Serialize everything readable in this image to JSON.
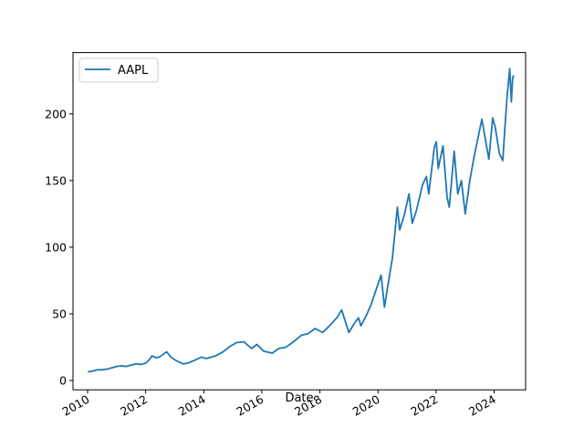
{
  "chart_data": {
    "type": "line",
    "title": "",
    "xlabel": "Date",
    "ylabel": "",
    "x_scale": "date",
    "xlim": [
      "2009-07-01",
      "2025-01-31"
    ],
    "ylim": [
      -7,
      246
    ],
    "x_ticks": [
      {
        "date": "2010-01-01",
        "label": "2010"
      },
      {
        "date": "2012-01-01",
        "label": "2012"
      },
      {
        "date": "2014-01-01",
        "label": "2014"
      },
      {
        "date": "2016-01-01",
        "label": "2016"
      },
      {
        "date": "2018-01-01",
        "label": "2018"
      },
      {
        "date": "2020-01-01",
        "label": "2020"
      },
      {
        "date": "2022-01-01",
        "label": "2022"
      },
      {
        "date": "2024-01-01",
        "label": "2024"
      }
    ],
    "y_ticks": [
      0,
      50,
      100,
      150,
      200
    ],
    "grid": false,
    "legend": {
      "position": "top-left"
    },
    "series": [
      {
        "name": "AAPL",
        "color": "#1f77b4",
        "points": [
          [
            "2010-01-04",
            6.5
          ],
          [
            "2010-03-01",
            7.0
          ],
          [
            "2010-05-01",
            8.0
          ],
          [
            "2010-07-01",
            8.0
          ],
          [
            "2010-09-01",
            8.5
          ],
          [
            "2010-11-01",
            9.5
          ],
          [
            "2011-01-01",
            10.5
          ],
          [
            "2011-03-01",
            11.0
          ],
          [
            "2011-05-01",
            10.5
          ],
          [
            "2011-07-01",
            11.5
          ],
          [
            "2011-09-01",
            12.5
          ],
          [
            "2011-11-01",
            12.0
          ],
          [
            "2012-01-01",
            13.0
          ],
          [
            "2012-02-15",
            15.5
          ],
          [
            "2012-03-20",
            18.5
          ],
          [
            "2012-05-15",
            17.0
          ],
          [
            "2012-07-01",
            18.0
          ],
          [
            "2012-09-20",
            21.5
          ],
          [
            "2012-11-15",
            17.5
          ],
          [
            "2013-01-15",
            15.0
          ],
          [
            "2013-04-15",
            12.5
          ],
          [
            "2013-06-15",
            13.0
          ],
          [
            "2013-09-01",
            15.0
          ],
          [
            "2013-12-01",
            17.5
          ],
          [
            "2014-02-01",
            16.5
          ],
          [
            "2014-06-01",
            18.5
          ],
          [
            "2014-09-01",
            21.5
          ],
          [
            "2014-11-25",
            25.5
          ],
          [
            "2015-02-20",
            28.5
          ],
          [
            "2015-05-20",
            29.0
          ],
          [
            "2015-08-25",
            24.0
          ],
          [
            "2015-11-01",
            27.0
          ],
          [
            "2016-01-25",
            22.0
          ],
          [
            "2016-05-12",
            20.5
          ],
          [
            "2016-08-01",
            24.0
          ],
          [
            "2016-11-01",
            25.0
          ],
          [
            "2017-02-01",
            29.0
          ],
          [
            "2017-05-15",
            34.0
          ],
          [
            "2017-08-01",
            35.0
          ],
          [
            "2017-11-01",
            39.0
          ],
          [
            "2018-02-05",
            36.0
          ],
          [
            "2018-05-01",
            41.0
          ],
          [
            "2018-08-01",
            47.0
          ],
          [
            "2018-10-01",
            53.0
          ],
          [
            "2018-12-31",
            36.0
          ],
          [
            "2019-03-01",
            42.0
          ],
          [
            "2019-05-01",
            47.0
          ],
          [
            "2019-06-01",
            41.0
          ],
          [
            "2019-08-01",
            48.0
          ],
          [
            "2019-10-01",
            56.0
          ],
          [
            "2019-12-31",
            72.0
          ],
          [
            "2020-02-10",
            79.0
          ],
          [
            "2020-03-23",
            55.0
          ],
          [
            "2020-05-01",
            70.0
          ],
          [
            "2020-07-01",
            92.0
          ],
          [
            "2020-09-01",
            130.0
          ],
          [
            "2020-10-01",
            113.0
          ],
          [
            "2020-12-01",
            125.0
          ],
          [
            "2021-01-25",
            140.0
          ],
          [
            "2021-03-08",
            118.0
          ],
          [
            "2021-05-01",
            128.0
          ],
          [
            "2021-07-15",
            147.0
          ],
          [
            "2021-09-01",
            153.0
          ],
          [
            "2021-10-01",
            140.0
          ],
          [
            "2021-12-10",
            175.0
          ],
          [
            "2022-01-04",
            179.0
          ],
          [
            "2022-01-28",
            159.0
          ],
          [
            "2022-03-29",
            176.0
          ],
          [
            "2022-05-20",
            137.0
          ],
          [
            "2022-06-16",
            130.0
          ],
          [
            "2022-08-17",
            172.0
          ],
          [
            "2022-10-01",
            140.0
          ],
          [
            "2022-11-15",
            150.0
          ],
          [
            "2023-01-03",
            125.0
          ],
          [
            "2023-03-01",
            150.0
          ],
          [
            "2023-05-01",
            170.0
          ],
          [
            "2023-07-31",
            196.0
          ],
          [
            "2023-10-27",
            166.0
          ],
          [
            "2023-12-14",
            197.0
          ],
          [
            "2024-01-15",
            190.0
          ],
          [
            "2024-03-08",
            170.0
          ],
          [
            "2024-04-19",
            165.0
          ],
          [
            "2024-05-15",
            189.0
          ],
          [
            "2024-06-12",
            213.0
          ],
          [
            "2024-07-15",
            234.0
          ],
          [
            "2024-08-05",
            209.0
          ],
          [
            "2024-08-20",
            226.0
          ],
          [
            "2024-09-01",
            229.0
          ]
        ]
      }
    ]
  }
}
